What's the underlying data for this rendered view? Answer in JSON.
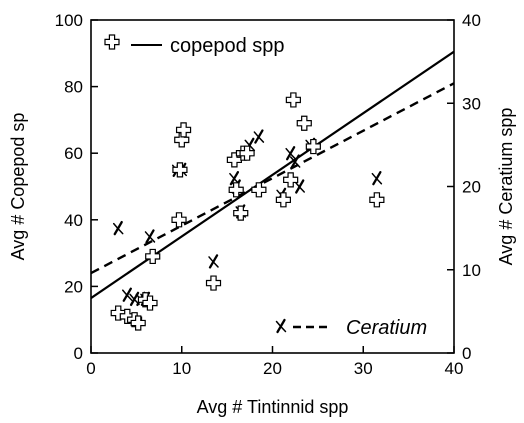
{
  "chart_data": {
    "type": "scatter",
    "xlabel": "Avg # Tintinnid spp",
    "ylabel_left": "Avg # Copepod sp",
    "ylabel_right": "Avg # Ceratium spp",
    "xlim": [
      0,
      40
    ],
    "ylim_left": [
      0,
      100
    ],
    "ylim_right": [
      0,
      40
    ],
    "x_ticks": [
      0,
      10,
      20,
      30,
      40
    ],
    "y_ticks_left": [
      0,
      20,
      40,
      60,
      80,
      100
    ],
    "y_ticks_right": [
      0,
      10,
      20,
      30,
      40
    ],
    "grid": false,
    "legend": [
      {
        "name": "copepod spp",
        "marker": "cross-outline",
        "line": "solid",
        "axis": "left",
        "placement": "top-left"
      },
      {
        "name": "Ceratium",
        "marker": "x",
        "line": "dashed",
        "axis": "right",
        "placement": "bottom-right"
      }
    ],
    "series": [
      {
        "name": "copepod spp",
        "axis": "left",
        "marker": "cross-outline",
        "points": [
          [
            3,
            12
          ],
          [
            4,
            11
          ],
          [
            4.8,
            10
          ],
          [
            5.2,
            9
          ],
          [
            6,
            16
          ],
          [
            6.5,
            15
          ],
          [
            6.8,
            29
          ],
          [
            9.7,
            40
          ],
          [
            9.8,
            55
          ],
          [
            10,
            64
          ],
          [
            10.2,
            67
          ],
          [
            13.5,
            21
          ],
          [
            15.8,
            58
          ],
          [
            16,
            49
          ],
          [
            16.5,
            42
          ],
          [
            16.8,
            60
          ],
          [
            17.2,
            60
          ],
          [
            18.5,
            49
          ],
          [
            21.2,
            46
          ],
          [
            22,
            52
          ],
          [
            22.3,
            76
          ],
          [
            23.5,
            69
          ],
          [
            24.5,
            62
          ],
          [
            31.5,
            46
          ]
        ],
        "fit": {
          "type": "linear",
          "intercept": 16.5,
          "slope": 1.85,
          "line_style": "solid"
        }
      },
      {
        "name": "Ceratium",
        "axis": "right",
        "marker": "x",
        "points": [
          [
            3,
            15
          ],
          [
            4,
            7
          ],
          [
            4.8,
            6.5
          ],
          [
            5.5,
            6.5
          ],
          [
            6,
            6.5
          ],
          [
            6.5,
            14
          ],
          [
            9.5,
            22
          ],
          [
            10,
            22
          ],
          [
            13.5,
            11
          ],
          [
            15.8,
            21
          ],
          [
            16,
            20
          ],
          [
            16.5,
            17
          ],
          [
            17.5,
            25
          ],
          [
            18.5,
            26
          ],
          [
            21,
            19
          ],
          [
            22,
            24
          ],
          [
            22.5,
            23
          ],
          [
            23,
            20
          ],
          [
            24.2,
            25
          ],
          [
            31.5,
            21
          ]
        ],
        "fit": {
          "type": "linear",
          "intercept": 9.6,
          "slope": 0.57,
          "line_style": "dashed"
        }
      }
    ]
  }
}
